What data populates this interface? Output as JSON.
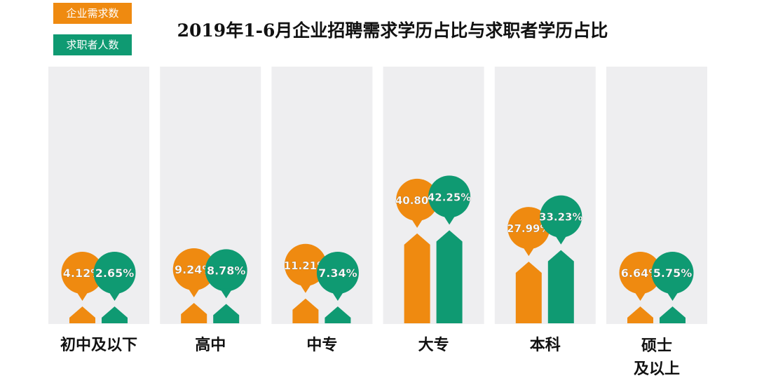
{
  "legend": {
    "orange_label": "企业需求数",
    "green_label": "求职者人数"
  },
  "chart_data": {
    "type": "bar",
    "title": "2019年1-6月企业招聘需求学历占比与求职者学历占比",
    "categories": [
      [
        "初中及以下"
      ],
      [
        "高中"
      ],
      [
        "中专"
      ],
      [
        "大专"
      ],
      [
        "本科"
      ],
      [
        "硕士",
        "及以上"
      ]
    ],
    "series": [
      {
        "name": "企业需求数",
        "color": "#ef8a10",
        "values": [
          4.12,
          9.24,
          11.21,
          40.8,
          27.99,
          6.64
        ],
        "labels": [
          "4.12%",
          "9.24%",
          "11.21%",
          "40.80%",
          "27.99%",
          "6.64%"
        ]
      },
      {
        "name": "求职者人数",
        "color": "#0f9a72",
        "values": [
          2.65,
          8.78,
          7.34,
          42.25,
          33.23,
          5.75
        ],
        "labels": [
          "2.65%",
          "8.78%",
          "7.34%",
          "42.25%",
          "33.23%",
          "5.75%"
        ]
      }
    ],
    "panel_color": "#eeeef0",
    "label_color": "#ffffff"
  }
}
